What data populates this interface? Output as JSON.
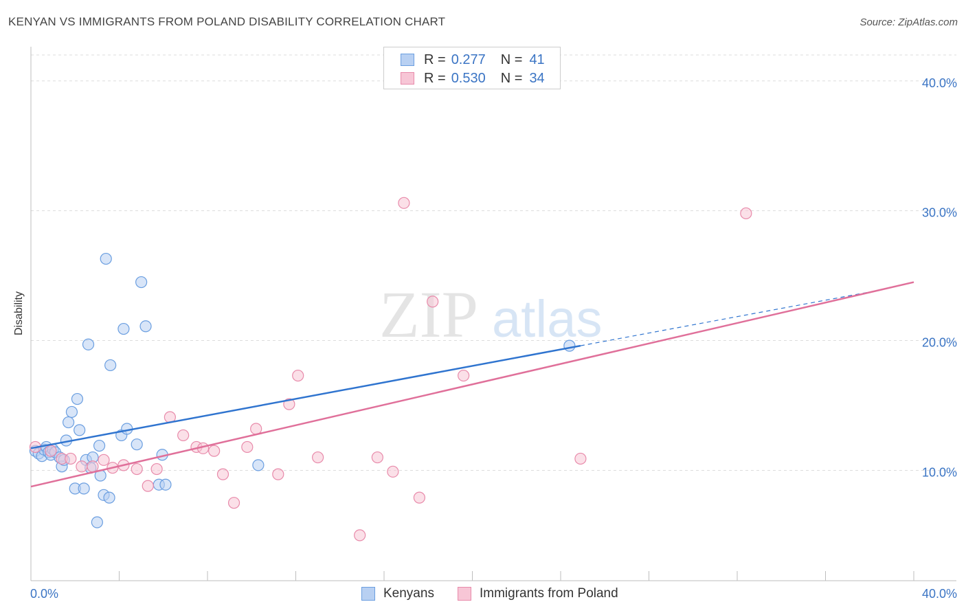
{
  "header": {
    "title": "KENYAN VS IMMIGRANTS FROM POLAND DISABILITY CORRELATION CHART",
    "source": "Source: ZipAtlas.com"
  },
  "watermark": {
    "zip": "ZIP",
    "atlas": "atlas"
  },
  "stats_legend": {
    "rows": [
      {
        "r_label": "R =",
        "r_value": "0.277",
        "n_label": "N =",
        "n_value": "41"
      },
      {
        "r_label": "R =",
        "r_value": "0.530",
        "n_label": "N =",
        "n_value": "34"
      }
    ]
  },
  "chart_data": {
    "type": "scatter",
    "title": "KENYAN VS IMMIGRANTS FROM POLAND DISABILITY CORRELATION CHART",
    "xlabel": "",
    "ylabel": "Disability",
    "xlim": [
      0,
      40
    ],
    "ylim": [
      1.5,
      42
    ],
    "x_tick_labels": [
      "0.0%",
      "40.0%"
    ],
    "y_ticks": [
      10,
      20,
      30,
      40
    ],
    "y_tick_labels": [
      "10.0%",
      "20.0%",
      "30.0%",
      "40.0%"
    ],
    "grid": "horizontal dashed",
    "legend_position": "top-center",
    "series": [
      {
        "name": "Kenyans",
        "color": "#6a9ee0",
        "fill": "#b8d0f2",
        "line_color": "#2f74cf",
        "R": 0.277,
        "N": 41,
        "trend": {
          "x0": 0,
          "y0": 11.7,
          "x1": 24.9,
          "y1": 19.6,
          "dashed_to_x": 38.5,
          "dashed_to_y": 23.9
        },
        "points": [
          [
            0.2,
            11.5
          ],
          [
            0.35,
            11.3
          ],
          [
            0.5,
            11.1
          ],
          [
            0.6,
            11.6
          ],
          [
            0.7,
            11.8
          ],
          [
            0.8,
            11.4
          ],
          [
            0.9,
            11.2
          ],
          [
            1.0,
            11.6
          ],
          [
            1.1,
            11.4
          ],
          [
            1.3,
            11.0
          ],
          [
            1.4,
            10.3
          ],
          [
            1.5,
            10.8
          ],
          [
            1.6,
            12.3
          ],
          [
            1.7,
            13.7
          ],
          [
            1.85,
            14.5
          ],
          [
            2.0,
            8.6
          ],
          [
            2.1,
            15.5
          ],
          [
            2.2,
            13.1
          ],
          [
            2.4,
            8.6
          ],
          [
            2.5,
            10.8
          ],
          [
            2.6,
            19.7
          ],
          [
            2.7,
            10.2
          ],
          [
            2.8,
            11.0
          ],
          [
            3.0,
            6.0
          ],
          [
            3.1,
            11.9
          ],
          [
            3.15,
            9.6
          ],
          [
            3.3,
            8.1
          ],
          [
            3.4,
            26.3
          ],
          [
            3.55,
            7.9
          ],
          [
            3.6,
            18.1
          ],
          [
            4.1,
            12.7
          ],
          [
            4.2,
            20.9
          ],
          [
            4.35,
            13.2
          ],
          [
            4.8,
            12.0
          ],
          [
            5.0,
            24.5
          ],
          [
            5.2,
            21.1
          ],
          [
            5.8,
            8.9
          ],
          [
            5.95,
            11.2
          ],
          [
            6.1,
            8.9
          ],
          [
            10.3,
            10.4
          ],
          [
            24.4,
            19.6
          ]
        ]
      },
      {
        "name": "Immigrants from Poland",
        "color": "#e88aaa",
        "fill": "#f7c6d6",
        "line_color": "#e0709a",
        "R": 0.53,
        "N": 34,
        "trend": {
          "x0": 0,
          "y0": 8.75,
          "x1": 40,
          "y1": 24.5
        },
        "points": [
          [
            0.2,
            11.8
          ],
          [
            0.9,
            11.5
          ],
          [
            1.4,
            10.9
          ],
          [
            1.8,
            10.9
          ],
          [
            2.3,
            10.3
          ],
          [
            2.8,
            10.3
          ],
          [
            3.3,
            10.8
          ],
          [
            3.7,
            10.2
          ],
          [
            4.2,
            10.4
          ],
          [
            4.8,
            10.1
          ],
          [
            5.3,
            8.8
          ],
          [
            5.7,
            10.1
          ],
          [
            6.3,
            14.1
          ],
          [
            6.9,
            12.7
          ],
          [
            7.5,
            11.8
          ],
          [
            7.8,
            11.7
          ],
          [
            8.3,
            11.5
          ],
          [
            8.7,
            9.7
          ],
          [
            9.2,
            7.5
          ],
          [
            9.8,
            11.8
          ],
          [
            10.2,
            13.2
          ],
          [
            11.2,
            9.7
          ],
          [
            11.7,
            15.1
          ],
          [
            12.1,
            17.3
          ],
          [
            13.0,
            11.0
          ],
          [
            15.7,
            11.0
          ],
          [
            16.4,
            9.9
          ],
          [
            16.9,
            30.6
          ],
          [
            17.6,
            7.9
          ],
          [
            18.2,
            23.0
          ],
          [
            19.6,
            17.3
          ],
          [
            24.9,
            10.9
          ],
          [
            32.4,
            29.8
          ],
          [
            14.9,
            5.0
          ]
        ]
      }
    ]
  },
  "bottom_legend": {
    "items": [
      {
        "label": "Kenyans"
      },
      {
        "label": "Immigrants from Poland"
      }
    ]
  }
}
